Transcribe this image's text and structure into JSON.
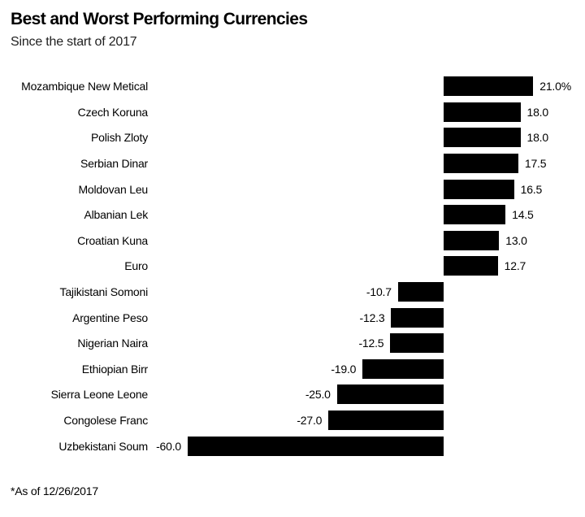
{
  "header": {
    "title": "Best and Worst Performing Currencies",
    "subtitle": "Since the start of 2017"
  },
  "footer": {
    "note": "*As of 12/26/2017"
  },
  "colors": {
    "bar": "#000000",
    "text": "#000000",
    "background": "#ffffff"
  },
  "chart_data": {
    "type": "bar",
    "orientation": "horizontal",
    "title": "Best and Worst Performing Currencies",
    "subtitle": "Since the start of 2017",
    "footnote": "*As of 12/26/2017",
    "xlabel": "",
    "ylabel": "",
    "xlim": [
      -60,
      21
    ],
    "baseline": 0,
    "grid": false,
    "legend": false,
    "unit": "percent",
    "categories": [
      "Mozambique New Metical",
      "Czech Koruna",
      "Polish Zloty",
      "Serbian Dinar",
      "Moldovan Leu",
      "Albanian Lek",
      "Croatian Kuna",
      "Euro",
      "Tajikistani Somoni",
      "Argentine Peso",
      "Nigerian Naira",
      "Ethiopian Birr",
      "Sierra Leone Leone",
      "Congolese Franc",
      "Uzbekistani Soum"
    ],
    "values": [
      21.0,
      18.0,
      18.0,
      17.5,
      16.5,
      14.5,
      13.0,
      12.7,
      -10.7,
      -12.3,
      -12.5,
      -19.0,
      -25.0,
      -27.0,
      -60.0
    ],
    "value_labels": [
      "21.0%",
      "18.0",
      "18.0",
      "17.5",
      "16.5",
      "14.5",
      "13.0",
      "12.7",
      "-10.7",
      "-12.3",
      "-12.5",
      "-19.0",
      "-25.0",
      "-27.0",
      "-60.0"
    ]
  }
}
